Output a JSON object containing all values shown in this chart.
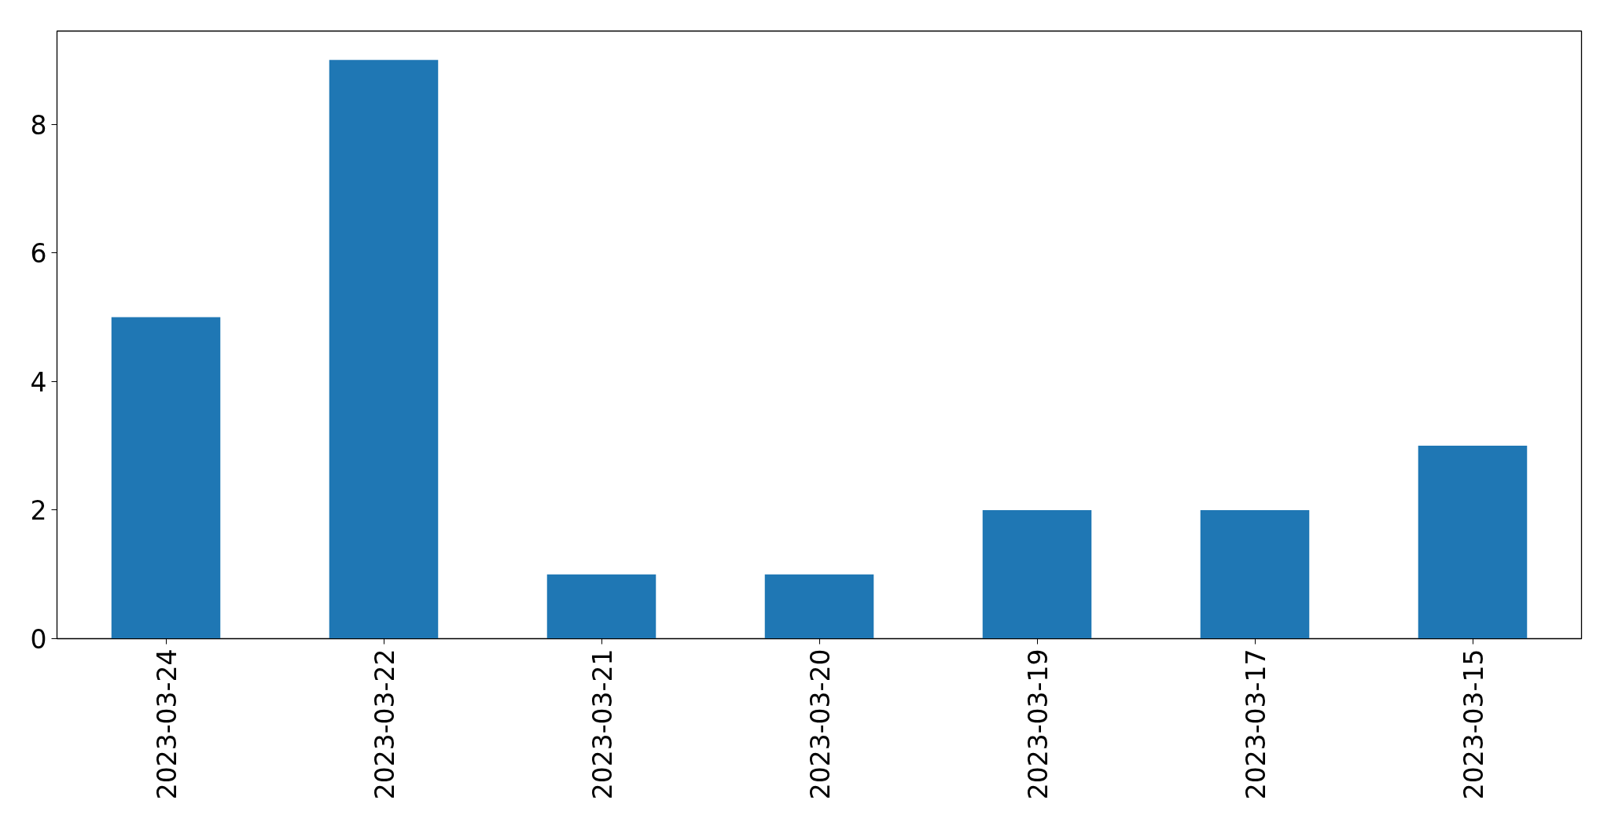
{
  "chart_data": {
    "type": "bar",
    "categories": [
      "2023-03-24",
      "2023-03-22",
      "2023-03-21",
      "2023-03-20",
      "2023-03-19",
      "2023-03-17",
      "2023-03-15"
    ],
    "values": [
      5,
      9,
      1,
      1,
      2,
      2,
      3
    ],
    "color": "#1f77b4",
    "ylim": [
      0,
      9.45
    ],
    "yticks": [
      0,
      2,
      4,
      6,
      8
    ],
    "grid": false
  }
}
